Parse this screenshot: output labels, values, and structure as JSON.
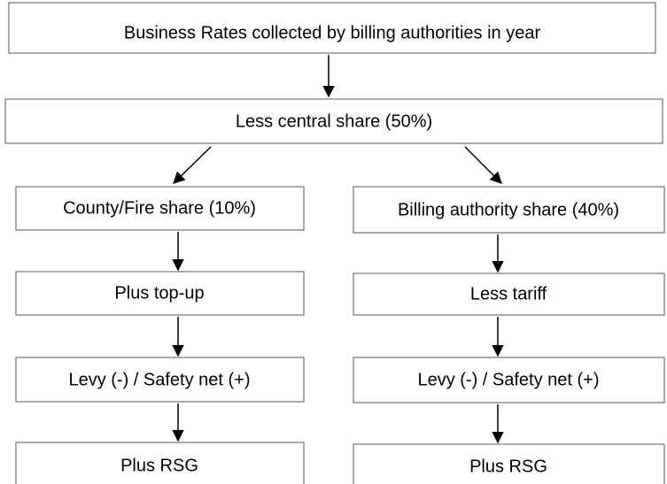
{
  "nodes": [
    {
      "label": "Business Rates collected by billing authorities in year"
    },
    {
      "label": "Less central share (50%)"
    },
    {
      "label": "County/Fire share (10%)"
    },
    {
      "label": "Plus top-up"
    },
    {
      "label": "Levy (-) / Safety net (+)"
    },
    {
      "label": "Plus RSG"
    },
    {
      "label": "Billing authority share (40%)"
    },
    {
      "label": "Less tariff"
    },
    {
      "label": "Levy (-) / Safety net (+)"
    },
    {
      "label": "Plus RSG"
    }
  ]
}
